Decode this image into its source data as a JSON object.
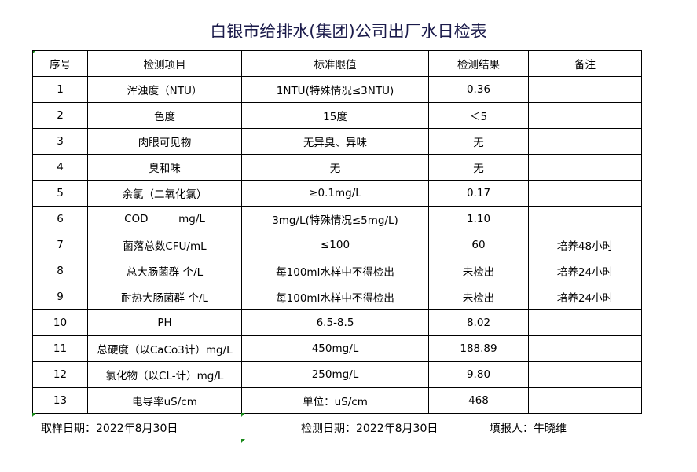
{
  "title": "白银市给排水(集团)公司出厂水日检表",
  "headers": [
    "序号",
    "检测项目",
    "标准限值",
    "检测结果",
    "备注"
  ],
  "rows": [
    [
      "1",
      "浑浊度（NTU）",
      "1NTU(特殊情况≤3NTU)",
      "0.36",
      ""
    ],
    [
      "2",
      "色度",
      "15度",
      "＜5",
      ""
    ],
    [
      "3",
      "肉眼可见物",
      "无异臭、异味",
      "无",
      ""
    ],
    [
      "4",
      "臭和味",
      "无",
      "无",
      ""
    ],
    [
      "5",
      "余氯（二氧化氯）",
      "≥0.1mg/L",
      "0.17",
      ""
    ],
    [
      "6",
      "COD         mg/L",
      "3mg/L(特殊情况≤5mg/L)",
      "1.10",
      ""
    ],
    [
      "7",
      "菌落总数CFU/mL",
      "≤100",
      "60",
      "培养48小时"
    ],
    [
      "8",
      "总大肠菌群 个/L",
      "每100ml水样中不得检出",
      "未检出",
      "培养24小时"
    ],
    [
      "9",
      "耐热大肠菌群 个/L",
      "每100ml水样中不得检出",
      "未检出",
      "培养24小时"
    ],
    [
      "10",
      "PH",
      "6.5-8.5",
      "8.02",
      ""
    ],
    [
      "11",
      "总硬度（以CaCo3计）mg/L",
      "450mg/L",
      "188.89",
      ""
    ],
    [
      "12",
      "氯化物（以CL-计）mg/L",
      "250mg/L",
      "9.80",
      ""
    ],
    [
      "13",
      "电导率uS/cm",
      "单位：uS/cm",
      "468",
      ""
    ]
  ],
  "footer": {
    "sample_date": "取样日期：2022年8月30日",
    "test_date": "检测日期：2022年8月30日",
    "reporter": "填报人：牛晓维"
  }
}
